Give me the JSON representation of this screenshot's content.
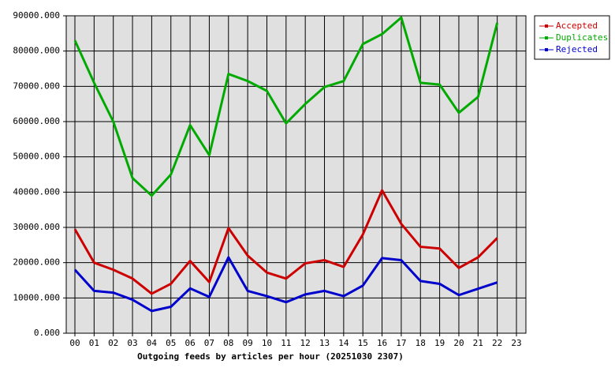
{
  "chart_data": {
    "type": "line",
    "xlabel": "Outgoing feeds by articles per hour (20251030 2307)",
    "categories": [
      "00",
      "01",
      "02",
      "03",
      "04",
      "05",
      "06",
      "07",
      "08",
      "09",
      "10",
      "11",
      "12",
      "13",
      "14",
      "15",
      "16",
      "17",
      "18",
      "19",
      "20",
      "21",
      "22",
      "23"
    ],
    "series": [
      {
        "name": "Accepted",
        "color": "#cc0000",
        "values": [
          29500,
          20000,
          18000,
          15500,
          11200,
          14000,
          20500,
          14500,
          29800,
          22000,
          17200,
          15500,
          19800,
          20700,
          18800,
          28000,
          40500,
          31000,
          24500,
          24000,
          18500,
          21500,
          27000,
          null
        ]
      },
      {
        "name": "Duplicates",
        "color": "#00aa00",
        "values": [
          83000,
          71000,
          60000,
          44000,
          39000,
          45000,
          59000,
          50500,
          73500,
          71500,
          68700,
          59500,
          65000,
          69800,
          71500,
          82000,
          84800,
          89500,
          71000,
          70500,
          62500,
          67000,
          88000,
          null
        ]
      },
      {
        "name": "Rejected",
        "color": "#0000cc",
        "values": [
          18000,
          12000,
          11500,
          9500,
          6300,
          7500,
          12700,
          10300,
          21500,
          12000,
          10500,
          8800,
          11000,
          12000,
          10500,
          13500,
          21300,
          20700,
          14800,
          14000,
          10800,
          12600,
          14400,
          null
        ]
      }
    ],
    "ylim": [
      0,
      90000
    ],
    "yticks": [
      {
        "value": 0,
        "label": "0.000"
      },
      {
        "value": 10000,
        "label": "10000.000"
      },
      {
        "value": 20000,
        "label": "20000.000"
      },
      {
        "value": 30000,
        "label": "30000.000"
      },
      {
        "value": 40000,
        "label": "40000.000"
      },
      {
        "value": 50000,
        "label": "50000.000"
      },
      {
        "value": 60000,
        "label": "60000.000"
      },
      {
        "value": 70000,
        "label": "70000.000"
      },
      {
        "value": 80000,
        "label": "80000.000"
      },
      {
        "value": 90000,
        "label": "90000.000"
      }
    ],
    "grid": true,
    "legend": "top-right"
  }
}
